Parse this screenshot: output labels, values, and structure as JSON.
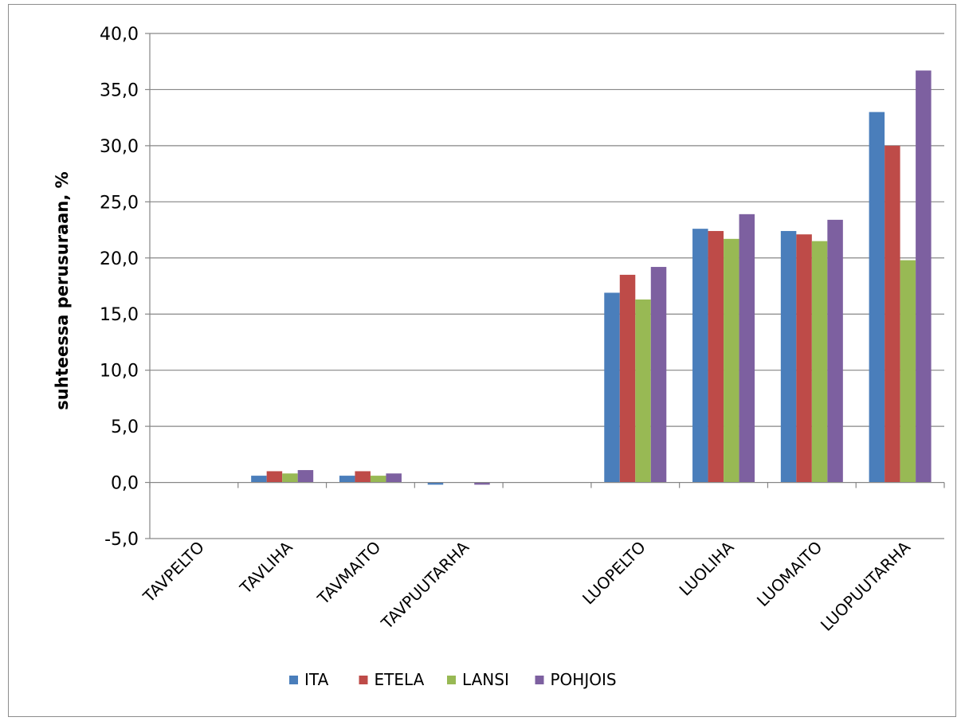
{
  "chart_data": {
    "type": "bar",
    "title": "",
    "xlabel": "",
    "ylabel": "suhteessa perusuraan, %",
    "ylim": [
      -5,
      40
    ],
    "ytick_step": 5,
    "ytick_labels": [
      "-5,0",
      "0,0",
      "5,0",
      "10,0",
      "15,0",
      "20,0",
      "25,0",
      "30,0",
      "35,0",
      "40,0"
    ],
    "grid": true,
    "legend_position": "bottom",
    "categories": [
      "TAVPELTO",
      "TAVLIHA",
      "TAVMAITO",
      "TAVPUUTARHA",
      "",
      "LUOPELTO",
      "LUOLIHA",
      "LUOMAITO",
      "LUOPUUTARHA"
    ],
    "series": [
      {
        "name": "ITA",
        "color": "#4a7ebb",
        "values": [
          0.0,
          0.6,
          0.6,
          -0.2,
          null,
          16.9,
          22.6,
          22.4,
          33.0
        ]
      },
      {
        "name": "ETELA",
        "color": "#be4b48",
        "values": [
          0.0,
          1.0,
          1.0,
          0.0,
          null,
          18.5,
          22.4,
          22.1,
          30.0
        ]
      },
      {
        "name": "LANSI",
        "color": "#98b954",
        "values": [
          0.0,
          0.8,
          0.6,
          0.0,
          null,
          16.3,
          21.7,
          21.5,
          19.8
        ]
      },
      {
        "name": "POHJOIS",
        "color": "#7d60a0",
        "values": [
          0.0,
          1.1,
          0.8,
          -0.2,
          null,
          19.2,
          23.9,
          23.4,
          36.7
        ]
      }
    ]
  }
}
